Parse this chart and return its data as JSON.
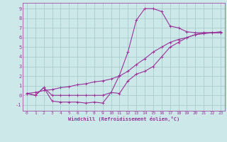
{
  "xlabel": "Windchill (Refroidissement éolien,°C)",
  "background_color": "#cce8e8",
  "grid_color": "#aacccc",
  "line_color": "#993399",
  "xlim": [
    -0.5,
    23.5
  ],
  "ylim": [
    -1.6,
    9.6
  ],
  "xticks": [
    0,
    1,
    2,
    3,
    4,
    5,
    6,
    7,
    8,
    9,
    10,
    11,
    12,
    13,
    14,
    15,
    16,
    17,
    18,
    19,
    20,
    21,
    22,
    23
  ],
  "yticks": [
    -1,
    0,
    1,
    2,
    3,
    4,
    5,
    6,
    7,
    8,
    9
  ],
  "line1_x": [
    0,
    1,
    2,
    3,
    4,
    5,
    6,
    7,
    8,
    9,
    10,
    11,
    12,
    13,
    14,
    15,
    16,
    17,
    18,
    19,
    20,
    21,
    22,
    23
  ],
  "line1_y": [
    0.2,
    0.0,
    0.8,
    0.0,
    0.0,
    0.0,
    0.0,
    0.0,
    0.0,
    0.0,
    0.3,
    2.1,
    4.5,
    7.8,
    9.0,
    9.0,
    8.7,
    7.2,
    7.0,
    6.6,
    6.5,
    6.5,
    6.5,
    6.5
  ],
  "line2_x": [
    0,
    1,
    2,
    3,
    4,
    5,
    6,
    7,
    8,
    9,
    10,
    11,
    12,
    13,
    14,
    15,
    16,
    17,
    18,
    19,
    20,
    21,
    22,
    23
  ],
  "line2_y": [
    0.2,
    0.3,
    0.5,
    0.6,
    0.8,
    0.9,
    1.1,
    1.2,
    1.4,
    1.5,
    1.7,
    2.0,
    2.5,
    3.2,
    3.8,
    4.5,
    5.0,
    5.5,
    5.8,
    6.0,
    6.3,
    6.4,
    6.5,
    6.6
  ],
  "line3_x": [
    0,
    1,
    2,
    3,
    4,
    5,
    6,
    7,
    8,
    9,
    10,
    11,
    12,
    13,
    14,
    15,
    16,
    17,
    18,
    19,
    20,
    21,
    22,
    23
  ],
  "line3_y": [
    0.2,
    0.0,
    0.8,
    -0.6,
    -0.7,
    -0.7,
    -0.7,
    -0.8,
    -0.7,
    -0.8,
    0.3,
    0.2,
    1.5,
    2.2,
    2.5,
    3.0,
    4.0,
    5.0,
    5.5,
    6.0,
    6.3,
    6.5,
    6.5,
    6.5
  ]
}
